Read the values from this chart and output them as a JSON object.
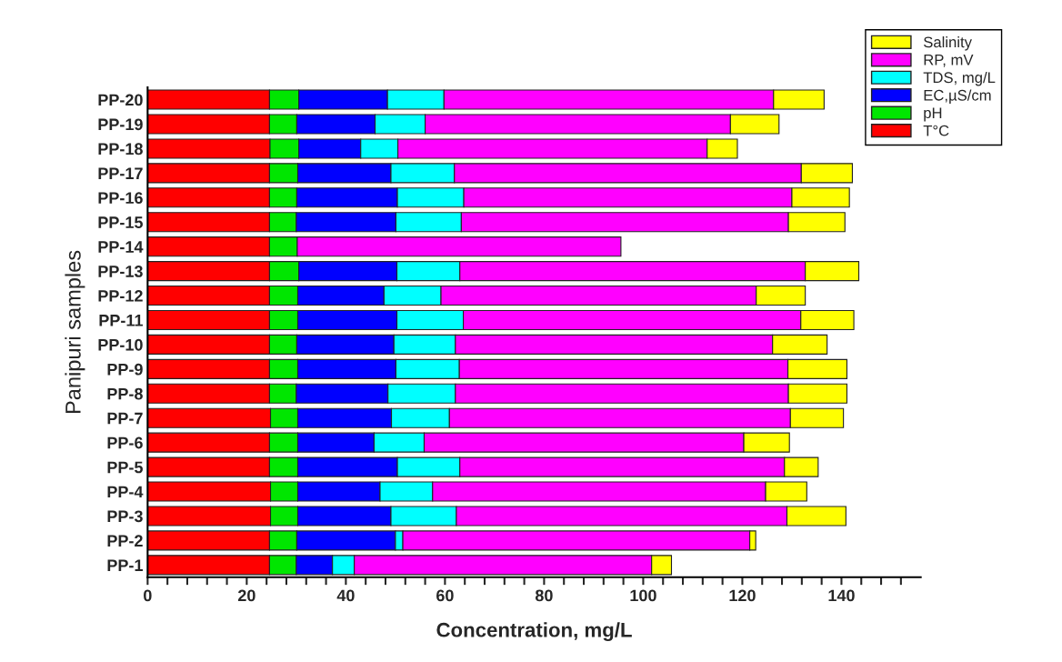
{
  "chart_data": {
    "type": "bar",
    "orientation": "horizontal",
    "stacked": true,
    "xlabel": "Concentration, mg/L",
    "ylabel": "Panipuri samples",
    "categories": [
      "PP-20",
      "PP-19",
      "PP-18",
      "PP-17",
      "PP-16",
      "PP-15",
      "PP-14",
      "PP-13",
      "PP-12",
      "PP-11",
      "PP-10",
      "PP-9",
      "PP-8",
      "PP-7",
      "PP-6",
      "PP-5",
      "PP-4",
      "PP-3",
      "PP-2",
      "PP-1"
    ],
    "series": [
      {
        "name": "T°C",
        "color": "#ff0000",
        "values": [
          24.6,
          24.6,
          24.7,
          24.6,
          24.6,
          24.6,
          24.6,
          24.6,
          24.6,
          24.6,
          24.6,
          24.6,
          24.6,
          24.8,
          24.6,
          24.6,
          24.8,
          24.8,
          24.6,
          24.6
        ]
      },
      {
        "name": "pH",
        "color": "#00e600",
        "values": [
          5.9,
          5.5,
          5.8,
          5.7,
          5.5,
          5.4,
          5.6,
          5.9,
          5.7,
          5.7,
          5.5,
          5.7,
          5.4,
          5.5,
          5.7,
          5.7,
          5.5,
          5.5,
          5.5,
          5.4
        ]
      },
      {
        "name": "EC,µS/cm",
        "color": "#0000ff",
        "values": [
          17.9,
          15.8,
          12.5,
          18.8,
          20.3,
          20.1,
          null,
          19.8,
          17.4,
          20.0,
          19.6,
          19.8,
          18.5,
          18.9,
          15.4,
          20.1,
          16.6,
          18.8,
          19.9,
          7.3
        ]
      },
      {
        "name": "TDS, mg/L",
        "color": "#00ffff",
        "values": [
          11.4,
          10.1,
          7.5,
          12.8,
          13.4,
          13.2,
          null,
          12.7,
          11.5,
          13.4,
          12.4,
          12.8,
          13.6,
          11.7,
          10.1,
          12.6,
          10.6,
          13.2,
          1.5,
          4.4
        ]
      },
      {
        "name": "RP, mV",
        "color": "#ff00ff",
        "values": [
          66.5,
          61.6,
          62.4,
          70.0,
          66.2,
          66.0,
          65.3,
          69.7,
          63.6,
          68.1,
          64.0,
          66.3,
          67.2,
          68.8,
          64.5,
          65.5,
          67.2,
          66.7,
          70.0,
          60.0
        ]
      },
      {
        "name": "Salinity",
        "color": "#ffff00",
        "values": [
          10.2,
          9.8,
          6.1,
          10.3,
          11.6,
          11.4,
          null,
          10.8,
          9.9,
          10.7,
          11.0,
          11.9,
          11.8,
          10.7,
          9.2,
          6.8,
          8.3,
          11.9,
          1.2,
          4.0
        ]
      }
    ],
    "xlim": [
      0,
      156
    ],
    "xticks": [
      0,
      {
        "value": 4,
        "label": null
      },
      {
        "value": 8,
        "label": null
      },
      {
        "value": 12,
        "label": null
      },
      {
        "value": 16,
        "label": null
      },
      20,
      {
        "value": 24,
        "label": null
      },
      {
        "value": 28,
        "label": null
      },
      {
        "value": 32,
        "label": null
      },
      {
        "value": 36,
        "label": null
      },
      40,
      {
        "value": 44,
        "label": null
      },
      {
        "value": 48,
        "label": null
      },
      {
        "value": 52,
        "label": null
      },
      {
        "value": 56,
        "label": null
      },
      60,
      {
        "value": 64,
        "label": null
      },
      {
        "value": 68,
        "label": null
      },
      {
        "value": 72,
        "label": null
      },
      {
        "value": 76,
        "label": null
      },
      80,
      {
        "value": 84,
        "label": null
      },
      {
        "value": 88,
        "label": null
      },
      {
        "value": 92,
        "label": null
      },
      {
        "value": 96,
        "label": null
      },
      100,
      {
        "value": 104,
        "label": null
      },
      {
        "value": 108,
        "label": null
      },
      {
        "value": 112,
        "label": null
      },
      {
        "value": 116,
        "label": null
      },
      120,
      {
        "value": 124,
        "label": null
      },
      {
        "value": 128,
        "label": null
      },
      {
        "value": 132,
        "label": null
      },
      {
        "value": 136,
        "label": null
      },
      140,
      {
        "value": 144,
        "label": null
      },
      {
        "value": 148,
        "label": null
      },
      {
        "value": 152,
        "label": null
      }
    ],
    "legend": "top right"
  }
}
